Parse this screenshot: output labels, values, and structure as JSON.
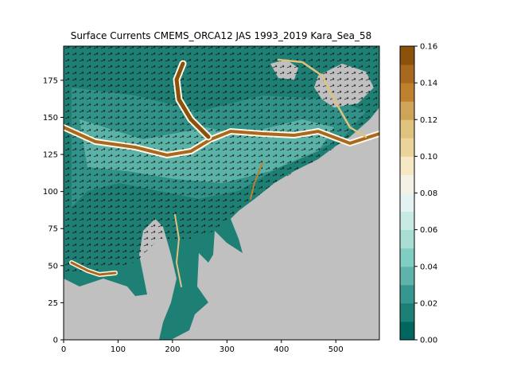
{
  "chart_data": {
    "type": "heatmap",
    "title": "Surface Currents CMEMS_ORCA12 JAS 1993_2019 Kara_Sea_58",
    "xlabel": "",
    "ylabel": "",
    "xlim": [
      0,
      580
    ],
    "ylim": [
      0,
      198
    ],
    "x_ticks": [
      0,
      100,
      200,
      300,
      400,
      500
    ],
    "y_ticks": [
      0,
      25,
      50,
      75,
      100,
      125,
      150,
      175
    ],
    "colorbar": {
      "min": 0.0,
      "max": 0.16,
      "ticks": [
        0.0,
        0.02,
        0.04,
        0.06,
        0.08,
        0.1,
        0.12,
        0.14,
        0.16
      ],
      "tick_labels": [
        "0.00",
        "0.02",
        "0.04",
        "0.06",
        "0.08",
        "0.10",
        "0.12",
        "0.14",
        "0.16"
      ],
      "levels": 16,
      "colors": [
        "#01665e",
        "#1c7f75",
        "#35978f",
        "#5fb3aa",
        "#80cdc1",
        "#a8ddd3",
        "#c7eae5",
        "#e4f3f1",
        "#f6f1e6",
        "#f6e8c3",
        "#ebd49c",
        "#dfc27d",
        "#cfa45a",
        "#bf812d",
        "#a8691f",
        "#8c510a"
      ]
    },
    "land_color": "#c0c0c0",
    "grid": false
  }
}
